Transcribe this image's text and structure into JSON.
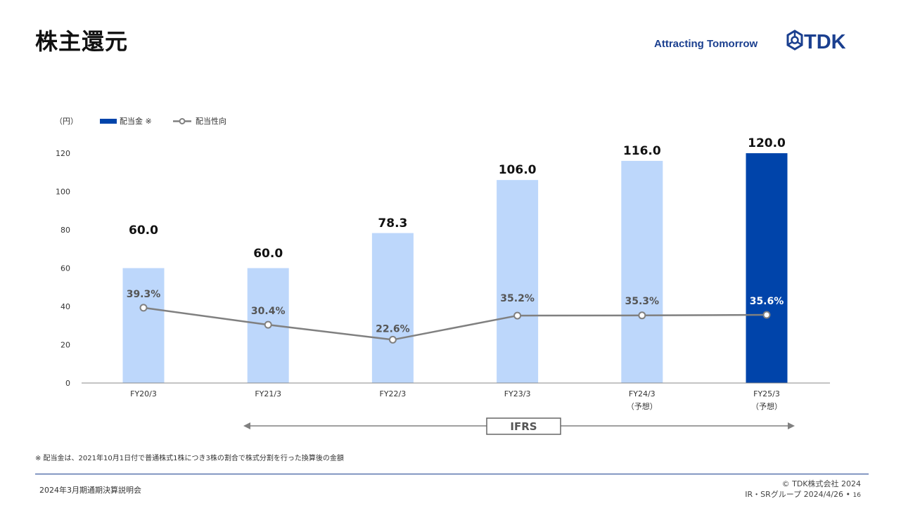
{
  "header": {
    "title": "株主還元",
    "tagline": "Attracting Tomorrow",
    "logo_text": "TDK"
  },
  "chart_data": {
    "type": "bar",
    "unit_label": "（円）",
    "categories": [
      "FY20/3",
      "FY21/3",
      "FY22/3",
      "FY23/3",
      "FY24/3",
      "FY25/3"
    ],
    "category_sublabels": [
      "",
      "",
      "",
      "",
      "（予想）",
      "（予想）"
    ],
    "series": [
      {
        "name": "配当金 ※",
        "type": "bar",
        "values": [
          60.0,
          60.0,
          78.3,
          106.0,
          116.0,
          120.0
        ],
        "labels": [
          "60.0",
          "60.0",
          "78.3",
          "106.0",
          "116.0",
          "120.0"
        ]
      },
      {
        "name": "配当性向",
        "type": "line",
        "values": [
          39.3,
          30.4,
          22.6,
          35.2,
          35.3,
          35.6
        ],
        "labels": [
          "39.3%",
          "30.4%",
          "22.6%",
          "35.2%",
          "35.3%",
          "35.6%"
        ]
      }
    ],
    "y_ticks": [
      "0",
      "20",
      "40",
      "60",
      "80",
      "100",
      "120"
    ],
    "ylim": [
      0,
      120
    ],
    "legend_position": "top-left",
    "colors": {
      "bar_actual": "#bdd7fb",
      "bar_forecast": "#0044aa",
      "line": "#808080",
      "label_dark": "#111111",
      "label_line": "#555555"
    },
    "ifrs_label": "IFRS"
  },
  "footnote": "※ 配当金は、2021年10月1日付で普通株式1株につき3株の割合で株式分割を行った換算後の金額",
  "footer": {
    "event": "2024年3月期通期決算説明会",
    "copyright": "© TDK株式会社 2024",
    "department": "IR・SRグループ  2024/4/26 •",
    "page": "16"
  }
}
